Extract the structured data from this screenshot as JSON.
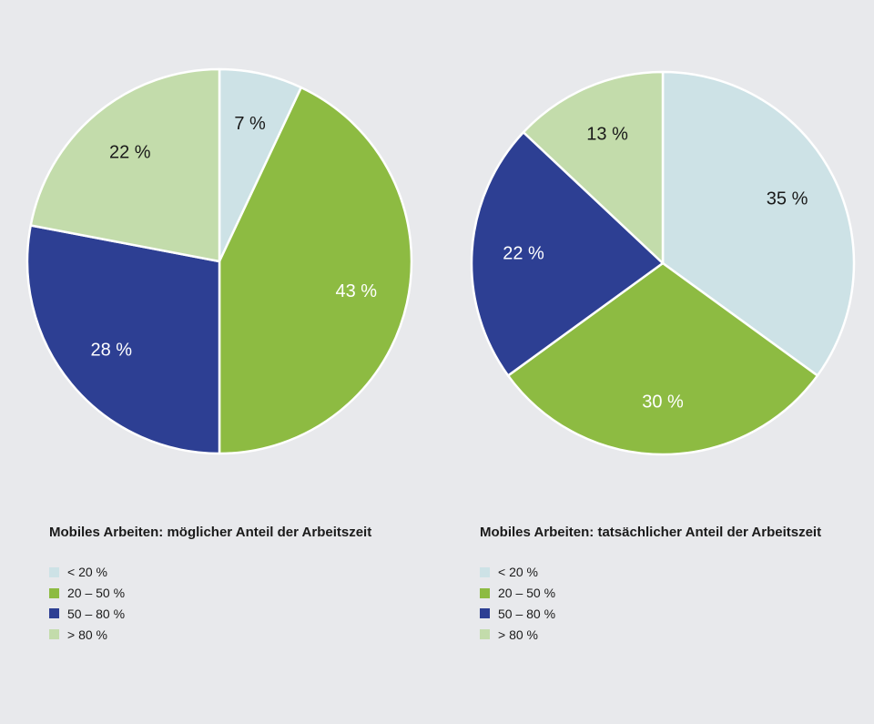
{
  "colors": {
    "background": "#e8e9ec",
    "lt20": "#cde2e6",
    "20to50": "#8dbb42",
    "50to80": "#2d3f93",
    "gt80": "#c3dcab",
    "slice_border": "#ffffff"
  },
  "chart_data": [
    {
      "type": "pie",
      "title": "Mobiles Arbeiten: möglicher Anteil der Arbeitszeit",
      "slices": [
        {
          "label": "< 20 %",
          "value": 7,
          "value_label": "7 %",
          "color": "#cde2e6"
        },
        {
          "label": "20 – 50 %",
          "value": 43,
          "value_label": "43 %",
          "color": "#8dbb42"
        },
        {
          "label": "50 – 80 %",
          "value": 28,
          "value_label": "28 %",
          "color": "#2d3f93"
        },
        {
          "label": "> 80 %",
          "value": 22,
          "value_label": "22 %",
          "color": "#c3dcab"
        }
      ],
      "legend_position": "bottom-left"
    },
    {
      "type": "pie",
      "title": "Mobiles Arbeiten: tatsächlicher Anteil der Arbeitszeit",
      "slices": [
        {
          "label": "< 20 %",
          "value": 35,
          "value_label": "35 %",
          "color": "#cde2e6"
        },
        {
          "label": "20 – 50 %",
          "value": 30,
          "value_label": "30 %",
          "color": "#8dbb42"
        },
        {
          "label": "50 – 80 %",
          "value": 22,
          "value_label": "22 %",
          "color": "#2d3f93"
        },
        {
          "label": "> 80 %",
          "value": 13,
          "value_label": "13 %",
          "color": "#c3dcab"
        }
      ],
      "legend_position": "bottom-right"
    }
  ],
  "legends": [
    {
      "title": "Mobiles Arbeiten: möglicher Anteil der Arbeitszeit",
      "items": [
        {
          "label": "< 20 %",
          "color": "#cde2e6"
        },
        {
          "label": "20 – 50 %",
          "color": "#8dbb42"
        },
        {
          "label": "50 – 80 %",
          "color": "#2d3f93"
        },
        {
          "label": "> 80 %",
          "color": "#c3dcab"
        }
      ]
    },
    {
      "title": "Mobiles Arbeiten: tatsächlicher Anteil der Arbeitszeit",
      "items": [
        {
          "label": "< 20 %",
          "color": "#cde2e6"
        },
        {
          "label": "20 – 50 %",
          "color": "#8dbb42"
        },
        {
          "label": "50 – 80 %",
          "color": "#2d3f93"
        },
        {
          "label": "> 80 %",
          "color": "#c3dcab"
        }
      ]
    }
  ]
}
